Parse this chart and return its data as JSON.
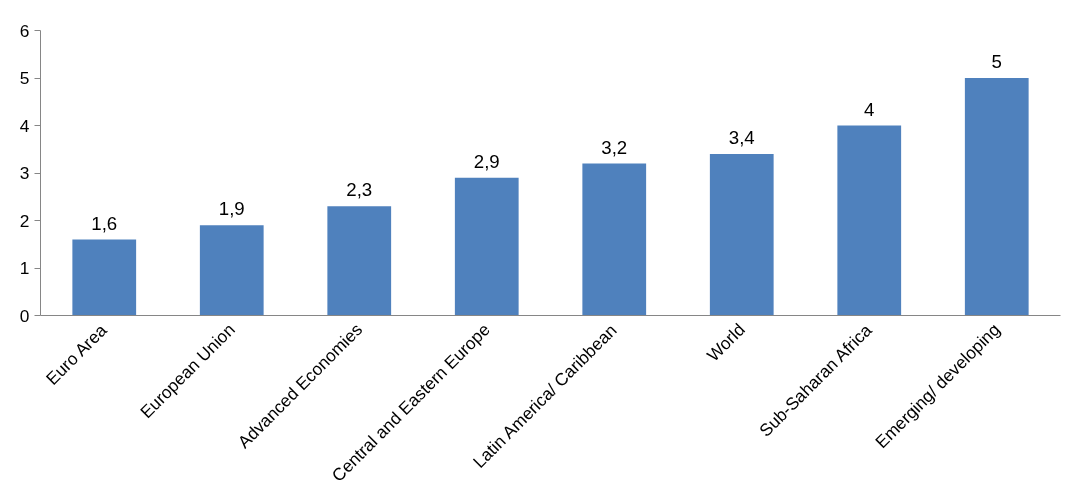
{
  "chart_data": {
    "type": "bar",
    "categories": [
      "Euro Area",
      "European Union",
      "Advanced Economies",
      "Central and Eastern Europe",
      "Latin America/ Caribbean",
      "World",
      "Sub-Saharan Africa",
      "Emerging/ developing"
    ],
    "values": [
      1.6,
      1.9,
      2.3,
      2.9,
      3.2,
      3.4,
      4,
      5
    ],
    "value_labels": [
      "1,6",
      "1,9",
      "2,3",
      "2,9",
      "3,2",
      "3,4",
      "4",
      "5"
    ],
    "color": "#4f81bd",
    "ylim": [
      0,
      6
    ],
    "yticks": [
      0,
      1,
      2,
      3,
      4,
      5,
      6
    ],
    "grid": false
  }
}
